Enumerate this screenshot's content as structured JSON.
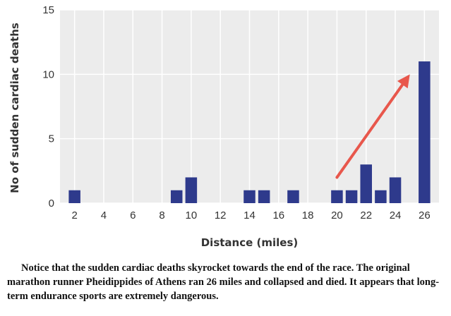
{
  "chart_data": {
    "type": "bar",
    "xlabel": "Distance (miles)",
    "ylabel": "No of sudden cardiac deaths",
    "xlim": [
      1,
      27
    ],
    "ylim": [
      0,
      15
    ],
    "x_ticks": [
      2,
      4,
      6,
      8,
      10,
      12,
      14,
      16,
      18,
      20,
      22,
      24,
      26
    ],
    "y_ticks": [
      0,
      5,
      10,
      15
    ],
    "x": [
      2,
      9,
      10,
      14,
      15,
      17,
      20,
      21,
      22,
      23,
      24,
      26
    ],
    "values": [
      1,
      1,
      2,
      1,
      1,
      1,
      1,
      1,
      3,
      1,
      2,
      11
    ],
    "bar_color": "#2e3a8c",
    "plot_background": "#ececec",
    "grid": true,
    "annotation": {
      "type": "arrow",
      "color": "#e8574c",
      "from": [
        20,
        2
      ],
      "to": [
        25,
        10
      ]
    }
  },
  "caption": "Notice that the sudden cardiac deaths skyrocket towards the end of the race. The original marathon runner Pheidippides of Athens ran 26 miles and collapsed and died. It appears that long-term endurance sports are extremely dangerous."
}
